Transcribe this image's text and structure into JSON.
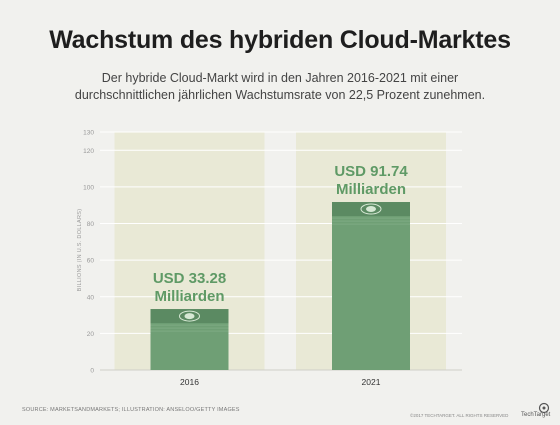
{
  "title": "Wachstum des hybriden Cloud-Marktes",
  "subtitle": "Der hybride Cloud-Markt wird in den Jahren 2016-2021 mit einer durchschnittlichen jährlichen Wachstumsrate von 22,5 Prozent zunehmen.",
  "chart_data": {
    "type": "bar",
    "categories": [
      "2016",
      "2021"
    ],
    "values": [
      33.28,
      91.74
    ],
    "value_labels": [
      [
        "USD 33.28",
        "Milliarden"
      ],
      [
        "USD 91.74",
        "Milliarden"
      ]
    ],
    "ylabel": "BILLIONS (IN U.S. DOLLARS)",
    "ylim": [
      0,
      130
    ],
    "yticks": [
      "0",
      "20",
      "40",
      "60",
      "80",
      "100",
      "120"
    ],
    "top_tick": "130",
    "grid": true,
    "bar_color": "#6f9f75",
    "bar_dark_color": "#5b8a62",
    "label_color": "#5f9a66",
    "band_color": "#e9e9d6"
  },
  "footer": {
    "source": "SOURCE: MARKETSANDMARKETS; ILLUSTRATION: ANSELOO/GETTY IMAGES",
    "copyright": "©2017 TECHTARGET. ALL RIGHTS RESERVED",
    "brand": "TechTarget"
  }
}
